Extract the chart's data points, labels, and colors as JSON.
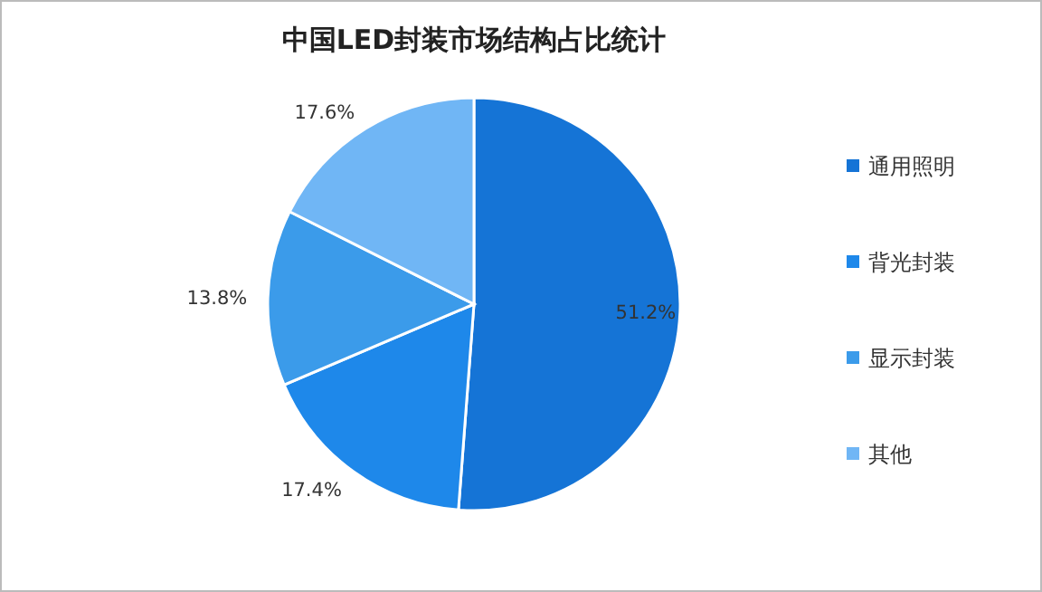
{
  "chart_data": {
    "type": "pie",
    "title": "中国LED封装市场结构占比统计",
    "categories": [
      "通用照明",
      "背光封装",
      "显示封装",
      "其他"
    ],
    "values": [
      51.2,
      17.4,
      13.8,
      17.6
    ],
    "colors": [
      "#1574d6",
      "#1e88ea",
      "#3b9bea",
      "#70b6f5"
    ],
    "value_labels": [
      "51.2%",
      "17.4%",
      "13.8%",
      "17.6%"
    ],
    "legend": "right"
  }
}
